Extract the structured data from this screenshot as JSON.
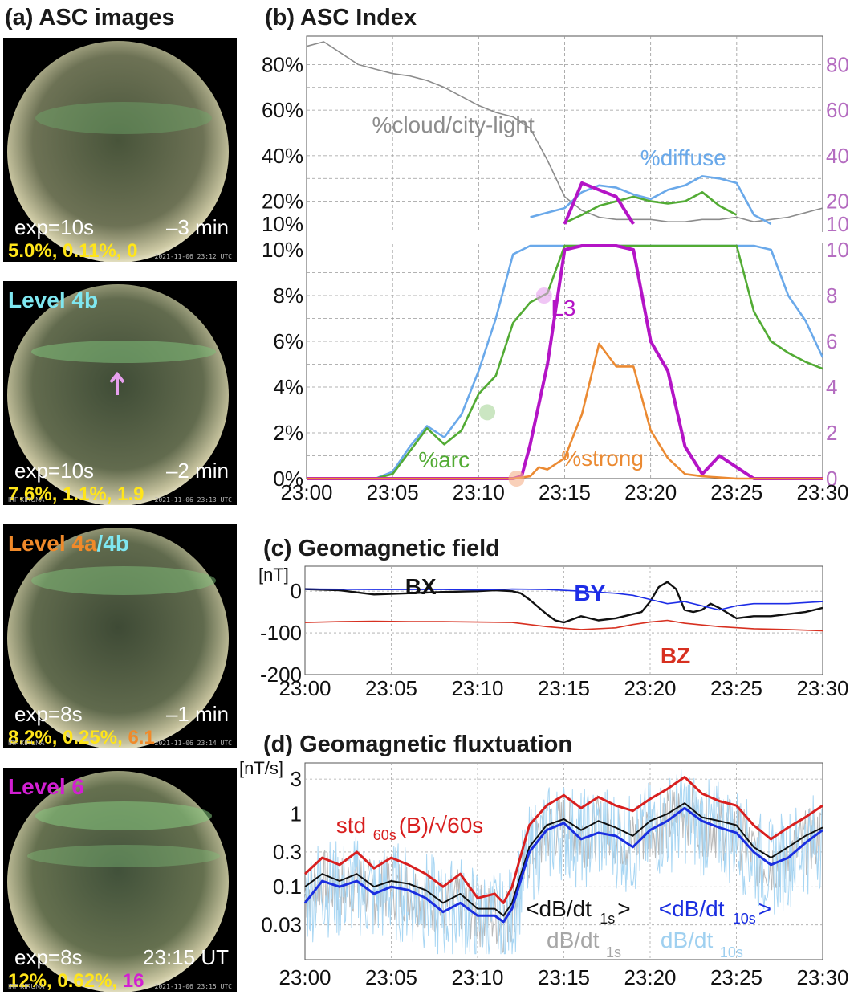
{
  "panels": {
    "a": {
      "title": "(a) ASC images"
    },
    "b": {
      "title": "(b) ASC Index"
    },
    "c": {
      "title": "(c) Geomagnetic field"
    },
    "d": {
      "title": "(d) Geomagnetic fluxtuation"
    }
  },
  "asc_images": [
    {
      "level": "",
      "level_color": "",
      "arrow": false,
      "exp": "exp=10s",
      "time": "–3 min",
      "stats": [
        "5.0%, ",
        "0.11%, ",
        "0"
      ],
      "stat3_color": "#ffe51a",
      "stamp": "2021-11-06 23:12 UTC",
      "station": ""
    },
    {
      "level": "Level 4b",
      "level_color": "#7fe7f0",
      "arrow": true,
      "exp": "exp=10s",
      "time": "–2 min",
      "stats": [
        "7.6%, ",
        "1.1%, ",
        " 1.9"
      ],
      "stat3_color": "#ffe51a",
      "stamp": "2021-11-06 23:13 UTC",
      "station": "IRF KIRUNA"
    },
    {
      "level_parts": [
        "Level 4a",
        "/",
        "4b"
      ],
      "level_colors": [
        "#f08a2a",
        "#7fe7f0",
        "#7fe7f0"
      ],
      "arrow": false,
      "exp": "exp=8s",
      "time": "–1 min",
      "stats": [
        "8.2%, ",
        "0.25%, ",
        "6.1"
      ],
      "stat3_color": "#f08a2a",
      "stamp": "2021-11-06 23:14 UTC",
      "station": "IRF KIRUNA"
    },
    {
      "level": "Level 6",
      "level_color": "#d21fd2",
      "arrow": false,
      "exp": "exp=8s",
      "time": "23:15 UT",
      "stats": [
        "12%, ",
        "0.62%, ",
        " 16"
      ],
      "stat3_color": "#d21fd2",
      "stamp": "2021-11-06 23:15 UTC",
      "station": "IRF KIRUNA"
    }
  ],
  "chart_data": [
    {
      "type": "line",
      "title": "(b) ASC Index",
      "x_ticks": [
        "23:00",
        "23:05",
        "23:10",
        "23:15",
        "23:20",
        "23:25",
        "23:30"
      ],
      "xlim_min": [
        0,
        30
      ],
      "upper": {
        "left_ticks": [
          "10%",
          "20%",
          "40%",
          "60%",
          "80%"
        ],
        "right_ticks": [
          "10",
          "20",
          "40",
          "60",
          "80"
        ]
      },
      "lower": {
        "left_ticks": [
          "0%",
          "2%",
          "4%",
          "6%",
          "8%",
          "10%"
        ],
        "right_ticks": [
          "0",
          "2",
          "4",
          "6",
          "8",
          "10"
        ],
        "ylim": [
          0,
          10
        ]
      },
      "series": [
        {
          "name": "%cloud/city-light",
          "color": "#8c8c8c",
          "panel": "upper",
          "x": [
            0,
            1,
            2,
            3,
            4,
            5,
            6,
            7,
            8,
            9,
            10,
            11,
            12,
            13,
            14,
            15,
            16,
            17,
            18,
            19,
            20,
            21,
            22,
            23,
            24,
            25,
            26,
            27,
            28,
            29,
            30
          ],
          "y": [
            88,
            90,
            85,
            80,
            78,
            76,
            75,
            73,
            70,
            66,
            62,
            59,
            57,
            52,
            38,
            22,
            16,
            13,
            12,
            12,
            12,
            11,
            11,
            12,
            12,
            13,
            11,
            12,
            13,
            15,
            17
          ]
        },
        {
          "name": "%diffuse",
          "color": "#6aa9ea",
          "panel": "both",
          "x": [
            0,
            2,
            4,
            5,
            6,
            7,
            8,
            9,
            10,
            11,
            12,
            13,
            14,
            15,
            16,
            17,
            18,
            19,
            20,
            21,
            22,
            23,
            24,
            25,
            26,
            27,
            28,
            29,
            30
          ],
          "y": [
            0,
            0,
            0,
            0.3,
            1.4,
            2.3,
            1.8,
            2.8,
            4.7,
            7.0,
            9.8,
            13,
            15,
            17,
            24,
            27,
            26,
            23,
            21,
            25,
            27,
            31,
            30,
            28,
            14,
            10,
            8,
            6.9,
            5.3
          ]
        },
        {
          "name": "%arc",
          "color": "#52ab34",
          "panel": "both",
          "x": [
            0,
            2,
            4,
            5,
            6,
            7,
            8,
            9,
            10,
            11,
            12,
            13,
            14,
            15,
            16,
            17,
            18,
            19,
            20,
            21,
            22,
            23,
            24,
            25,
            26,
            27,
            28,
            29,
            30
          ],
          "y": [
            0,
            0,
            0,
            0.2,
            1.2,
            2.2,
            1.5,
            2.1,
            3.7,
            4.5,
            6.8,
            7.7,
            8.1,
            10.5,
            14,
            18,
            20,
            22,
            20,
            19,
            20,
            24,
            18,
            14,
            7.3,
            6.0,
            5.5,
            5.1,
            4.8
          ]
        },
        {
          "name": "L3",
          "color": "#b414c6",
          "panel": "both",
          "x": [
            0,
            11,
            12,
            12.5,
            13,
            14,
            15,
            16,
            17,
            18,
            19,
            20,
            21,
            22,
            23,
            24,
            25,
            26,
            27,
            28,
            29,
            30
          ],
          "y": [
            0,
            0,
            0,
            0.1,
            1.5,
            5.0,
            10,
            28,
            25,
            22,
            10,
            6,
            4.7,
            1.4,
            0.2,
            1.0,
            0.5,
            0,
            0,
            0,
            0,
            0
          ]
        },
        {
          "name": "%strong",
          "color": "#eb8a32",
          "panel": "lower",
          "x": [
            0,
            12,
            13,
            13.5,
            14,
            15,
            16,
            17,
            18,
            19,
            20,
            21,
            22,
            23,
            24,
            25,
            26,
            30
          ],
          "y": [
            0,
            0,
            0.1,
            0.5,
            0.4,
            0.9,
            2.8,
            5.9,
            4.9,
            4.9,
            2.1,
            0.9,
            0.2,
            0.1,
            0.05,
            0,
            0,
            0
          ]
        }
      ]
    },
    {
      "type": "line",
      "title": "(c) Geomagnetic field",
      "ylabel": "[nT]",
      "y_ticks": [
        "0",
        "-100",
        "-200"
      ],
      "ylim": [
        -200,
        60
      ],
      "x_ticks": [
        "23:00",
        "23:05",
        "23:10",
        "23:15",
        "23:20",
        "23:25",
        "23:30"
      ],
      "series": [
        {
          "name": "BX",
          "color": "#111111",
          "x": [
            0,
            2,
            4,
            6,
            8,
            10,
            11,
            12,
            12.5,
            13,
            14,
            14.5,
            15,
            16,
            17,
            18,
            19,
            19.5,
            20,
            20.5,
            21,
            21.5,
            22,
            22.5,
            23,
            23.5,
            24,
            25,
            26,
            27,
            28,
            29,
            30
          ],
          "y": [
            5,
            2,
            -8,
            -5,
            -2,
            0,
            2,
            0,
            -5,
            -20,
            -55,
            -70,
            -75,
            -60,
            -70,
            -65,
            -55,
            -50,
            -25,
            10,
            22,
            5,
            -45,
            -50,
            -45,
            -30,
            -40,
            -65,
            -60,
            -60,
            -55,
            -50,
            -40
          ]
        },
        {
          "name": "BY",
          "color": "#1d2de6",
          "x": [
            0,
            4,
            8,
            10,
            12,
            14,
            16,
            18,
            19,
            20,
            21,
            22,
            23,
            24,
            25,
            26,
            28,
            30
          ],
          "y": [
            5,
            4,
            4,
            3,
            5,
            4,
            0,
            -5,
            -10,
            -20,
            -30,
            -25,
            -35,
            -45,
            -35,
            -30,
            -30,
            -25
          ]
        },
        {
          "name": "BZ",
          "color": "#d73020",
          "x": [
            0,
            2,
            4,
            6,
            8,
            10,
            12,
            14,
            16,
            18,
            19,
            20,
            21,
            22,
            24,
            26,
            28,
            30
          ],
          "y": [
            -75,
            -73,
            -72,
            -73,
            -73,
            -74,
            -75,
            -85,
            -92,
            -88,
            -80,
            -74,
            -70,
            -77,
            -85,
            -90,
            -92,
            -95
          ]
        }
      ]
    },
    {
      "type": "line",
      "title": "(d) Geomagnetic fluxtuation",
      "ylabel": "[nT/s]",
      "y_scale": "log",
      "y_ticks": [
        "3",
        "1",
        "0.3",
        "0.1",
        "0.03"
      ],
      "ylim": [
        0.01,
        5
      ],
      "x_ticks": [
        "23:00",
        "23:05",
        "23:10",
        "23:15",
        "23:20",
        "23:25",
        "23:30"
      ],
      "series": [
        {
          "name": "std60s(B)/√60s",
          "color": "#d81f1f",
          "x": [
            0,
            1,
            2,
            3,
            4,
            5,
            6,
            7,
            8,
            9,
            10,
            11,
            11.5,
            12,
            13,
            14,
            15,
            16,
            17,
            18,
            19,
            20,
            21,
            22,
            23,
            24,
            25,
            26,
            27,
            28,
            29,
            30
          ],
          "y": [
            0.15,
            0.25,
            0.2,
            0.3,
            0.18,
            0.25,
            0.2,
            0.15,
            0.1,
            0.15,
            0.07,
            0.08,
            0.06,
            0.1,
            0.7,
            1.3,
            1.8,
            1.2,
            1.7,
            1.3,
            1.1,
            1.6,
            2.2,
            3.2,
            1.9,
            1.5,
            1.3,
            0.7,
            0.45,
            0.65,
            0.9,
            1.3
          ]
        },
        {
          "name": "<dB/dt1s>",
          "color": "#111111",
          "x": [
            0,
            1,
            2,
            3,
            4,
            5,
            6,
            7,
            8,
            9,
            10,
            11,
            11.5,
            12,
            13,
            14,
            15,
            16,
            17,
            18,
            19,
            20,
            21,
            22,
            23,
            24,
            25,
            26,
            27,
            28,
            29,
            30
          ],
          "y": [
            0.1,
            0.15,
            0.12,
            0.15,
            0.1,
            0.12,
            0.11,
            0.09,
            0.06,
            0.08,
            0.05,
            0.05,
            0.04,
            0.06,
            0.35,
            0.7,
            0.85,
            0.6,
            0.8,
            0.65,
            0.5,
            0.8,
            1.0,
            1.4,
            0.9,
            0.8,
            0.7,
            0.35,
            0.25,
            0.35,
            0.5,
            0.65
          ]
        },
        {
          "name": "<dB/dt10s>",
          "color": "#1a2ee0",
          "x": [
            0,
            1,
            2,
            3,
            4,
            5,
            6,
            7,
            8,
            9,
            10,
            11,
            11.5,
            12,
            13,
            14,
            15,
            16,
            17,
            18,
            19,
            20,
            21,
            22,
            23,
            24,
            25,
            26,
            27,
            28,
            29,
            30
          ],
          "y": [
            0.06,
            0.12,
            0.1,
            0.12,
            0.08,
            0.1,
            0.09,
            0.07,
            0.045,
            0.06,
            0.04,
            0.04,
            0.033,
            0.05,
            0.3,
            0.6,
            0.75,
            0.45,
            0.55,
            0.5,
            0.35,
            0.6,
            0.8,
            1.2,
            0.8,
            0.65,
            0.55,
            0.3,
            0.2,
            0.25,
            0.4,
            0.6
          ]
        },
        {
          "name": "dB/dt1s",
          "color": "#a6a6a6",
          "noisy": true
        },
        {
          "name": "dB/dt10s",
          "color": "#9fd0f0",
          "noisy": true
        }
      ]
    }
  ]
}
